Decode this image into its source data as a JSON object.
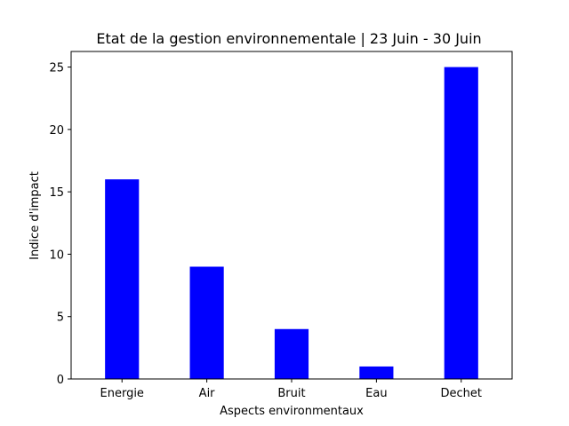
{
  "chart_data": {
    "type": "bar",
    "title": "Etat de la gestion environnementale | 23 Juin - 30 Juin",
    "xlabel": "Aspects environmentaux",
    "ylabel": "Indice d'impact",
    "categories": [
      "Energie",
      "Air",
      "Bruit",
      "Eau",
      "Dechet"
    ],
    "values": [
      16,
      9,
      4,
      1,
      25
    ],
    "ylim": [
      0,
      26.25
    ],
    "yticks": [
      0,
      5,
      10,
      15,
      20,
      25
    ],
    "bar_color": "#0000ff",
    "grid": false,
    "legend": "none"
  }
}
